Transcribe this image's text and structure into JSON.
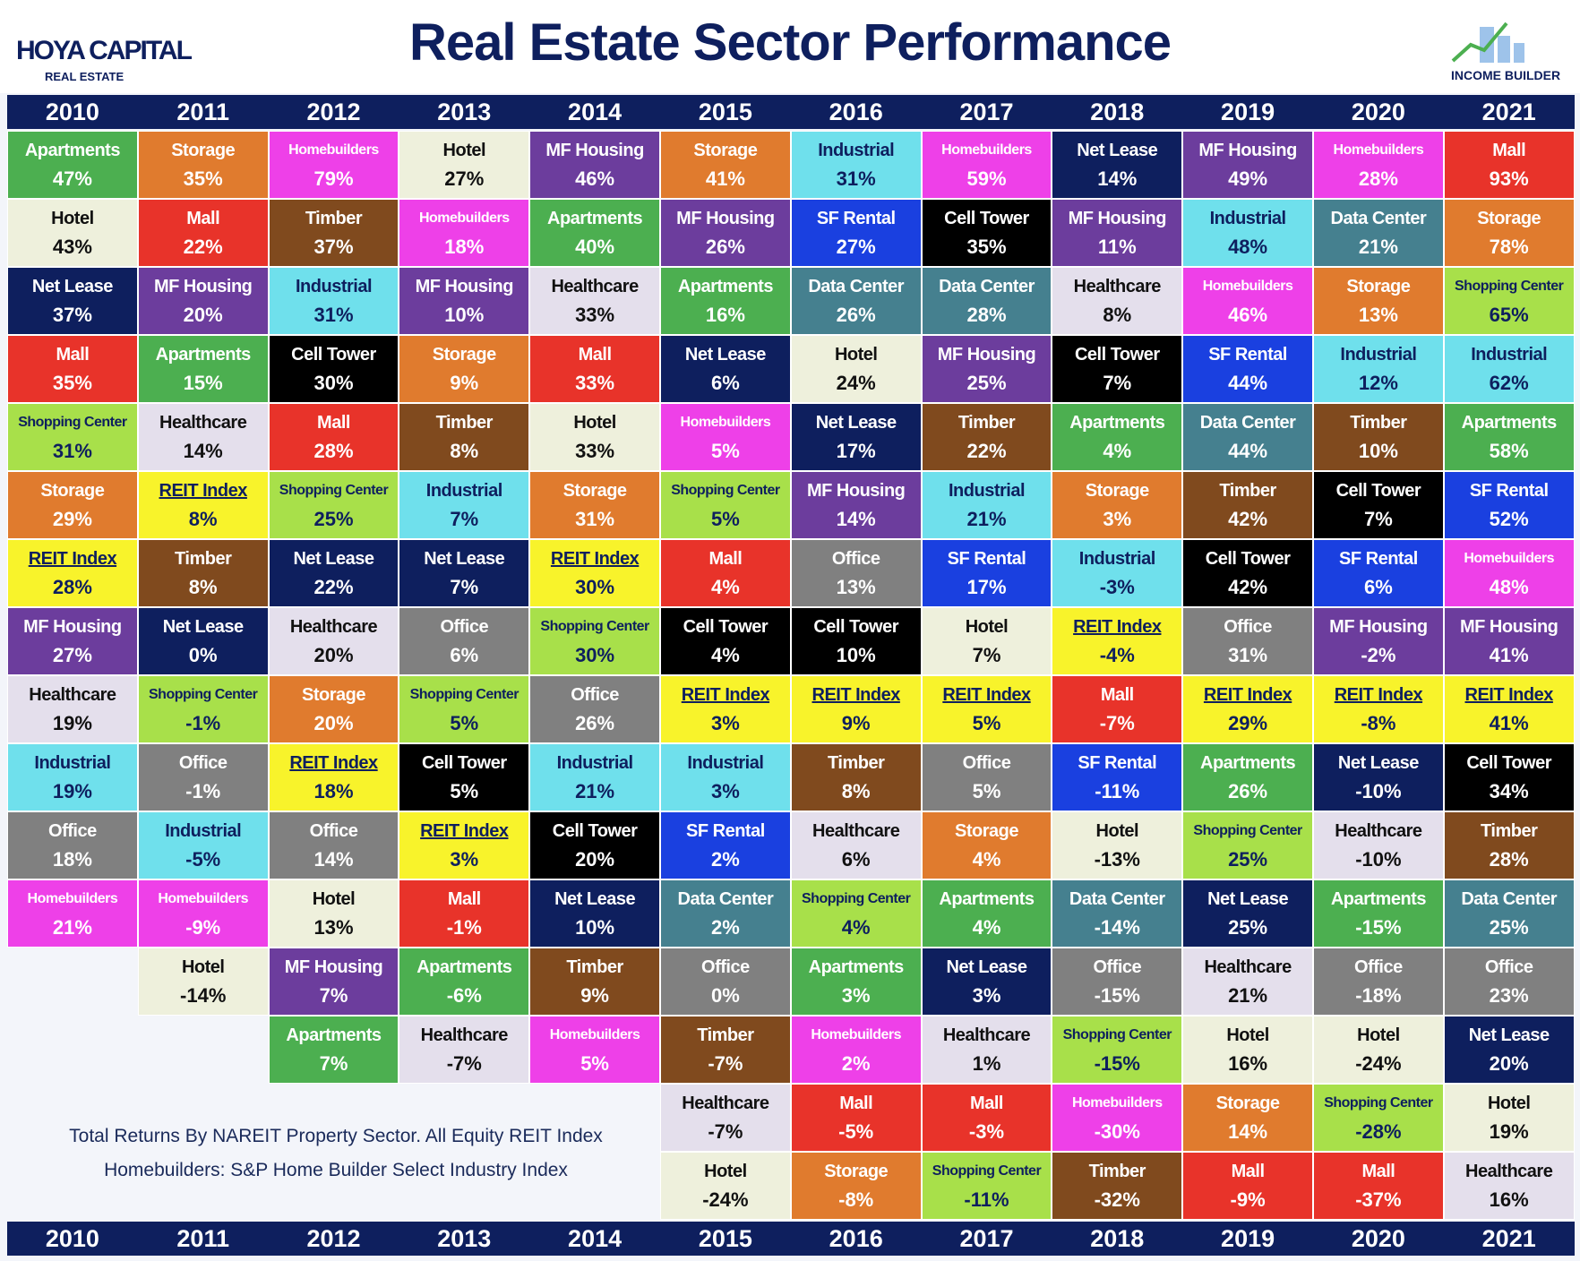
{
  "header": {
    "title": "Real Estate Sector Performance",
    "logo_left": [
      "HOYA CAPITAL",
      "REAL ESTATE"
    ],
    "logo_right": "INCOME BUILDER"
  },
  "years": [
    "2010",
    "2011",
    "2012",
    "2013",
    "2014",
    "2015",
    "2016",
    "2017",
    "2018",
    "2019",
    "2020",
    "2021"
  ],
  "columns": [
    [
      [
        "Apartments",
        "47%"
      ],
      [
        "Hotel",
        "43%"
      ],
      [
        "Net Lease",
        "37%"
      ],
      [
        "Mall",
        "35%"
      ],
      [
        "Shopping Center",
        "31%"
      ],
      [
        "Storage",
        "29%"
      ],
      [
        "REIT Index",
        "28%"
      ],
      [
        "MF Housing",
        "27%"
      ],
      [
        "Healthcare",
        "19%"
      ],
      [
        "Industrial",
        "19%"
      ],
      [
        "Office",
        "18%"
      ],
      [
        "Homebuilders",
        "21%"
      ]
    ],
    [
      [
        "Storage",
        "35%"
      ],
      [
        "Mall",
        "22%"
      ],
      [
        "MF Housing",
        "20%"
      ],
      [
        "Apartments",
        "15%"
      ],
      [
        "Healthcare",
        "14%"
      ],
      [
        "REIT Index",
        "8%"
      ],
      [
        "Timber",
        "8%"
      ],
      [
        "Net Lease",
        "0%"
      ],
      [
        "Shopping Center",
        "-1%"
      ],
      [
        "Office",
        "-1%"
      ],
      [
        "Industrial",
        "-5%"
      ],
      [
        "Homebuilders",
        "-9%"
      ],
      [
        "Hotel",
        "-14%"
      ]
    ],
    [
      [
        "Homebuilders",
        "79%"
      ],
      [
        "Timber",
        "37%"
      ],
      [
        "Industrial",
        "31%"
      ],
      [
        "Cell Tower",
        "30%"
      ],
      [
        "Mall",
        "28%"
      ],
      [
        "Shopping Center",
        "25%"
      ],
      [
        "Net Lease",
        "22%"
      ],
      [
        "Healthcare",
        "20%"
      ],
      [
        "Storage",
        "20%"
      ],
      [
        "REIT Index",
        "18%"
      ],
      [
        "Office",
        "14%"
      ],
      [
        "Hotel",
        "13%"
      ],
      [
        "MF Housing",
        "7%"
      ],
      [
        "Apartments",
        "7%"
      ]
    ],
    [
      [
        "Hotel",
        "27%"
      ],
      [
        "Homebuilders",
        "18%"
      ],
      [
        "MF Housing",
        "10%"
      ],
      [
        "Storage",
        "9%"
      ],
      [
        "Timber",
        "8%"
      ],
      [
        "Industrial",
        "7%"
      ],
      [
        "Net Lease",
        "7%"
      ],
      [
        "Office",
        "6%"
      ],
      [
        "Shopping Center",
        "5%"
      ],
      [
        "Cell Tower",
        "5%"
      ],
      [
        "REIT Index",
        "3%"
      ],
      [
        "Mall",
        "-1%"
      ],
      [
        "Apartments",
        "-6%"
      ],
      [
        "Healthcare",
        "-7%"
      ]
    ],
    [
      [
        "MF Housing",
        "46%"
      ],
      [
        "Apartments",
        "40%"
      ],
      [
        "Healthcare",
        "33%"
      ],
      [
        "Mall",
        "33%"
      ],
      [
        "Hotel",
        "33%"
      ],
      [
        "Storage",
        "31%"
      ],
      [
        "REIT Index",
        "30%"
      ],
      [
        "Shopping Center",
        "30%"
      ],
      [
        "Office",
        "26%"
      ],
      [
        "Industrial",
        "21%"
      ],
      [
        "Cell Tower",
        "20%"
      ],
      [
        "Net Lease",
        "10%"
      ],
      [
        "Timber",
        "9%"
      ],
      [
        "Homebuilders",
        "5%"
      ]
    ],
    [
      [
        "Storage",
        "41%"
      ],
      [
        "MF Housing",
        "26%"
      ],
      [
        "Apartments",
        "16%"
      ],
      [
        "Net Lease",
        "6%"
      ],
      [
        "Homebuilders",
        "5%"
      ],
      [
        "Shopping Center",
        "5%"
      ],
      [
        "Mall",
        "4%"
      ],
      [
        "Cell Tower",
        "4%"
      ],
      [
        "REIT Index",
        "3%"
      ],
      [
        "Industrial",
        "3%"
      ],
      [
        "SF Rental",
        "2%"
      ],
      [
        "Data Center",
        "2%"
      ],
      [
        "Office",
        "0%"
      ],
      [
        "Timber",
        "-7%"
      ],
      [
        "Healthcare",
        "-7%"
      ],
      [
        "Hotel",
        "-24%"
      ]
    ],
    [
      [
        "Industrial",
        "31%"
      ],
      [
        "SF Rental",
        "27%"
      ],
      [
        "Data Center",
        "26%"
      ],
      [
        "Hotel",
        "24%"
      ],
      [
        "Net Lease",
        "17%"
      ],
      [
        "MF Housing",
        "14%"
      ],
      [
        "Office",
        "13%"
      ],
      [
        "Cell Tower",
        "10%"
      ],
      [
        "REIT Index",
        "9%"
      ],
      [
        "Timber",
        "8%"
      ],
      [
        "Healthcare",
        "6%"
      ],
      [
        "Shopping Center",
        "4%"
      ],
      [
        "Apartments",
        "3%"
      ],
      [
        "Homebuilders",
        "2%"
      ],
      [
        "Mall",
        "-5%"
      ],
      [
        "Storage",
        "-8%"
      ]
    ],
    [
      [
        "Homebuilders",
        "59%"
      ],
      [
        "Cell Tower",
        "35%"
      ],
      [
        "Data Center",
        "28%"
      ],
      [
        "MF Housing",
        "25%"
      ],
      [
        "Timber",
        "22%"
      ],
      [
        "Industrial",
        "21%"
      ],
      [
        "SF Rental",
        "17%"
      ],
      [
        "Hotel",
        "7%"
      ],
      [
        "REIT Index",
        "5%"
      ],
      [
        "Office",
        "5%"
      ],
      [
        "Storage",
        "4%"
      ],
      [
        "Apartments",
        "4%"
      ],
      [
        "Net Lease",
        "3%"
      ],
      [
        "Healthcare",
        "1%"
      ],
      [
        "Mall",
        "-3%"
      ],
      [
        "Shopping Center",
        "-11%"
      ]
    ],
    [
      [
        "Net Lease",
        "14%"
      ],
      [
        "MF Housing",
        "11%"
      ],
      [
        "Healthcare",
        "8%"
      ],
      [
        "Cell Tower",
        "7%"
      ],
      [
        "Apartments",
        "4%"
      ],
      [
        "Storage",
        "3%"
      ],
      [
        "Industrial",
        "-3%"
      ],
      [
        "REIT Index",
        "-4%"
      ],
      [
        "Mall",
        "-7%"
      ],
      [
        "SF Rental",
        "-11%"
      ],
      [
        "Hotel",
        "-13%"
      ],
      [
        "Data Center",
        "-14%"
      ],
      [
        "Office",
        "-15%"
      ],
      [
        "Shopping Center",
        "-15%"
      ],
      [
        "Homebuilders",
        "-30%"
      ],
      [
        "Timber",
        "-32%"
      ]
    ],
    [
      [
        "MF Housing",
        "49%"
      ],
      [
        "Industrial",
        "48%"
      ],
      [
        "Homebuilders",
        "46%"
      ],
      [
        "SF Rental",
        "44%"
      ],
      [
        "Data Center",
        "44%"
      ],
      [
        "Timber",
        "42%"
      ],
      [
        "Cell Tower",
        "42%"
      ],
      [
        "Office",
        "31%"
      ],
      [
        "REIT Index",
        "29%"
      ],
      [
        "Apartments",
        "26%"
      ],
      [
        "Shopping Center",
        "25%"
      ],
      [
        "Net Lease",
        "25%"
      ],
      [
        "Healthcare",
        "21%"
      ],
      [
        "Hotel",
        "16%"
      ],
      [
        "Storage",
        "14%"
      ],
      [
        "Mall",
        "-9%"
      ]
    ],
    [
      [
        "Homebuilders",
        "28%"
      ],
      [
        "Data Center",
        "21%"
      ],
      [
        "Storage",
        "13%"
      ],
      [
        "Industrial",
        "12%"
      ],
      [
        "Timber",
        "10%"
      ],
      [
        "Cell Tower",
        "7%"
      ],
      [
        "SF Rental",
        "6%"
      ],
      [
        "MF Housing",
        "-2%"
      ],
      [
        "REIT Index",
        "-8%"
      ],
      [
        "Net Lease",
        "-10%"
      ],
      [
        "Healthcare",
        "-10%"
      ],
      [
        "Apartments",
        "-15%"
      ],
      [
        "Office",
        "-18%"
      ],
      [
        "Hotel",
        "-24%"
      ],
      [
        "Shopping Center",
        "-28%"
      ],
      [
        "Mall",
        "-37%"
      ]
    ],
    [
      [
        "Mall",
        "93%"
      ],
      [
        "Storage",
        "78%"
      ],
      [
        "Shopping Center",
        "65%"
      ],
      [
        "Industrial",
        "62%"
      ],
      [
        "Apartments",
        "58%"
      ],
      [
        "SF Rental",
        "52%"
      ],
      [
        "Homebuilders",
        "48%"
      ],
      [
        "MF Housing",
        "41%"
      ],
      [
        "REIT Index",
        "41%"
      ],
      [
        "Cell Tower",
        "34%"
      ],
      [
        "Timber",
        "28%"
      ],
      [
        "Data Center",
        "25%"
      ],
      [
        "Office",
        "23%"
      ],
      [
        "Net Lease",
        "20%"
      ],
      [
        "Hotel",
        "19%"
      ],
      [
        "Healthcare",
        "16%"
      ]
    ]
  ],
  "sector_styles": {
    "Apartments": [
      "#4caf50",
      "#ffffff"
    ],
    "Hotel": [
      "#eef0dc",
      "#111111"
    ],
    "Net Lease": [
      "#0e1f5e",
      "#ffffff"
    ],
    "Mall": [
      "#e8332a",
      "#ffffff"
    ],
    "Shopping Center": [
      "#a8e04a",
      "#0e1f5e"
    ],
    "Storage": [
      "#e07b2e",
      "#ffffff"
    ],
    "REIT Index": [
      "#f8f32b",
      "#0e1f5e"
    ],
    "MF Housing": [
      "#6c3d9d",
      "#ffffff"
    ],
    "Healthcare": [
      "#e4dfec",
      "#111111"
    ],
    "Industrial": [
      "#6fe0ec",
      "#0e1f5e"
    ],
    "Office": [
      "#808080",
      "#ffffff"
    ],
    "Homebuilders": [
      "#ee40e8",
      "#ffffff"
    ],
    "Timber": [
      "#804a1e",
      "#ffffff"
    ],
    "Cell Tower": [
      "#000000",
      "#ffffff"
    ],
    "SF Rental": [
      "#1a40e0",
      "#ffffff"
    ],
    "Data Center": [
      "#45808f",
      "#ffffff"
    ]
  },
  "underlined_sector": "REIT Index",
  "footnotes": [
    "Total Returns By NAREIT Property Sector. All Equity REIT Index",
    "Homebuilders: S&P Home Builder Select Industry Index"
  ]
}
